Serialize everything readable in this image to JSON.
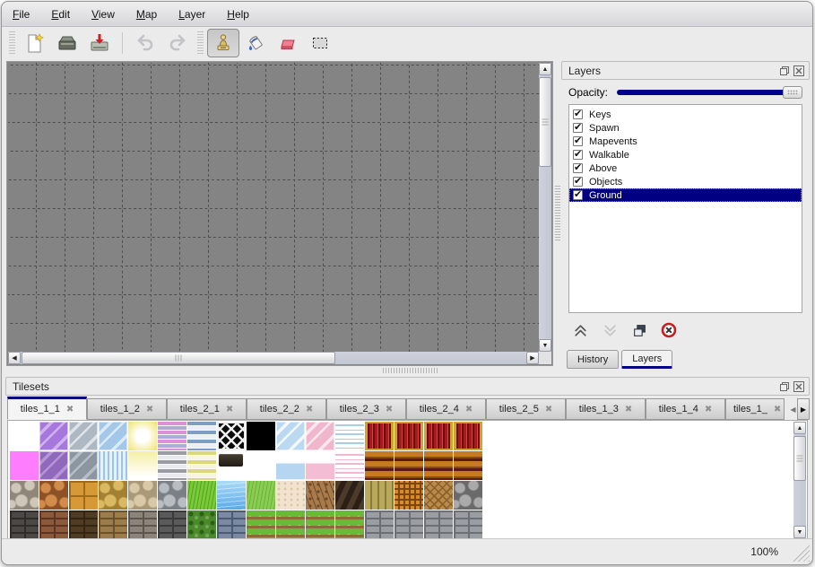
{
  "menu": {
    "items": [
      "File",
      "Edit",
      "View",
      "Map",
      "Layer",
      "Help"
    ]
  },
  "toolbar": {
    "buttons": [
      {
        "icon": "new-file-icon",
        "active": false,
        "disabled": false
      },
      {
        "icon": "open-icon",
        "active": false,
        "disabled": false
      },
      {
        "icon": "save-icon",
        "active": false,
        "disabled": false
      },
      {
        "icon": "undo-icon",
        "active": false,
        "disabled": true
      },
      {
        "icon": "redo-icon",
        "active": false,
        "disabled": true
      },
      {
        "icon": "stamp-tool-icon",
        "active": true,
        "disabled": false
      },
      {
        "icon": "fill-tool-icon",
        "active": false,
        "disabled": false
      },
      {
        "icon": "eraser-tool-icon",
        "active": false,
        "disabled": false
      },
      {
        "icon": "rect-select-tool-icon",
        "active": false,
        "disabled": false
      }
    ]
  },
  "layers_panel": {
    "title": "Layers",
    "opacity_label": "Opacity:",
    "opacity_value": 100,
    "layers": [
      {
        "name": "Keys",
        "checked": true,
        "selected": false
      },
      {
        "name": "Spawn",
        "checked": true,
        "selected": false
      },
      {
        "name": "Mapevents",
        "checked": true,
        "selected": false
      },
      {
        "name": "Walkable",
        "checked": true,
        "selected": false
      },
      {
        "name": "Above",
        "checked": true,
        "selected": false
      },
      {
        "name": "Objects",
        "checked": true,
        "selected": false
      },
      {
        "name": "Ground",
        "checked": true,
        "selected": true
      }
    ],
    "actions": [
      {
        "icon": "move-layer-up-icon",
        "disabled": false
      },
      {
        "icon": "move-layer-down-icon",
        "disabled": true
      },
      {
        "icon": "duplicate-layer-icon",
        "disabled": false
      },
      {
        "icon": "delete-layer-icon",
        "disabled": false
      }
    ],
    "tabs": [
      {
        "label": "History",
        "active": false
      },
      {
        "label": "Layers",
        "active": true
      }
    ]
  },
  "tilesets_panel": {
    "title": "Tilesets",
    "close_glyph": "✖",
    "tabs": [
      {
        "label": "tiles_1_1",
        "active": true,
        "truncated": false
      },
      {
        "label": "tiles_1_2",
        "active": false,
        "truncated": false
      },
      {
        "label": "tiles_2_1",
        "active": false,
        "truncated": false
      },
      {
        "label": "tiles_2_2",
        "active": false,
        "truncated": false
      },
      {
        "label": "tiles_2_3",
        "active": false,
        "truncated": false
      },
      {
        "label": "tiles_2_4",
        "active": false,
        "truncated": false
      },
      {
        "label": "tiles_2_5",
        "active": false,
        "truncated": false
      },
      {
        "label": "tiles_1_3",
        "active": false,
        "truncated": false
      },
      {
        "label": "tiles_1_4",
        "active": false,
        "truncated": false
      },
      {
        "label": "tiles_1_",
        "active": false,
        "truncated": true
      }
    ],
    "palette": {
      "tile_size": 32,
      "rows": [
        [
          {
            "p": "solid",
            "a": "#ffffff"
          },
          {
            "p": "glass",
            "a": "#a678de",
            "b": "#cfb2ee"
          },
          {
            "p": "glass",
            "a": "#aeb8c2",
            "b": "#dde3e9"
          },
          {
            "p": "glass",
            "a": "#a3c6e9",
            "b": "#d9ebf9"
          },
          {
            "p": "glow",
            "a": "#f5ec94"
          },
          {
            "p": "hstripe",
            "a": "#df8ed9",
            "b": "#a9aed8"
          },
          {
            "p": "hstripe",
            "a": "#7e9dc2",
            "b": "#e9eff5"
          },
          {
            "p": "lattice",
            "a": "#0c0c0c",
            "b": "#efefef"
          },
          {
            "p": "solid",
            "a": "#000000"
          },
          {
            "p": "glass",
            "a": "#bcd9f2",
            "b": "#f2f8fd"
          },
          {
            "p": "glass",
            "a": "#f0b6cb",
            "b": "#fbe8ef"
          },
          {
            "p": "lace",
            "a": "#a9cde9",
            "b": "#ffffff"
          },
          {
            "p": "curtain",
            "a": "#a81a20",
            "b": "#d2a22e"
          },
          {
            "p": "curtain",
            "a": "#a81a20",
            "b": "#d2a22e"
          },
          {
            "p": "curtain",
            "a": "#a81a20",
            "b": "#d2a22e"
          },
          {
            "p": "curtain",
            "a": "#a81a20",
            "b": "#d2a22e"
          }
        ],
        [
          {
            "p": "solid",
            "a": "#fe7dfe"
          },
          {
            "p": "glass",
            "a": "#9069bd",
            "b": "#b695d6"
          },
          {
            "p": "glass",
            "a": "#8c96a0",
            "b": "#b4bec6"
          },
          {
            "p": "shimmer",
            "a": "#9cc3e9",
            "b": "#e6f2fb"
          },
          {
            "p": "fade",
            "a": "#f6efa6"
          },
          {
            "p": "hstripe",
            "a": "#9b9ba3",
            "b": "#eaeaee"
          },
          {
            "p": "hstripe",
            "a": "#dcd67c",
            "b": "#f7f5da"
          },
          {
            "p": "sign",
            "a": "#463e32",
            "b": "#201c16"
          },
          null,
          {
            "p": "half",
            "a": "#b6d5f0"
          },
          {
            "p": "half",
            "a": "#f3bdd3"
          },
          {
            "p": "lace",
            "a": "#f0b8d0",
            "b": "#ffffff"
          },
          {
            "p": "plank",
            "a": "#c67a22",
            "b": "#5c1a16"
          },
          {
            "p": "plank",
            "a": "#c67a22",
            "b": "#5c1a16"
          },
          {
            "p": "plank",
            "a": "#c67a22",
            "b": "#5c1a16"
          },
          {
            "p": "plank",
            "a": "#c67a22",
            "b": "#5c1a16"
          }
        ],
        [
          {
            "p": "cobble",
            "a": "#cfc8ba",
            "b": "#8e877a"
          },
          {
            "p": "cobble",
            "a": "#d18c4c",
            "b": "#8c5124"
          },
          {
            "p": "grid",
            "a": "#d79936",
            "b": "#a06a18"
          },
          {
            "p": "cobble",
            "a": "#d9ba62",
            "b": "#a28232"
          },
          {
            "p": "cobble",
            "a": "#d9c9a9",
            "b": "#a99979"
          },
          {
            "p": "cobble",
            "a": "#b9bdc1",
            "b": "#7a8086"
          },
          {
            "p": "grass",
            "a": "#7ac93a",
            "b": "#52a21a"
          },
          {
            "p": "water",
            "a": "#5aaae9",
            "b": "#aadaf9"
          },
          {
            "p": "grass",
            "a": "#8acd52",
            "b": "#6ab23a"
          },
          {
            "p": "sand",
            "a": "#f1e3cd",
            "b": "#d9c5a5"
          },
          {
            "p": "dirt",
            "a": "#a97a4a",
            "b": "#6c4a2a"
          },
          {
            "p": "shingle",
            "a": "#4c3a2a",
            "b": "#2c2016"
          },
          {
            "p": "vplank",
            "a": "#b9a95a",
            "b": "#89793a"
          },
          {
            "p": "weave",
            "a": "#d98a2a",
            "b": "#7c4612"
          },
          {
            "p": "herringbone",
            "a": "#b98a4a",
            "b": "#8c5e2a"
          },
          {
            "p": "cobble",
            "a": "#aaaaaa",
            "b": "#6a6a6a"
          }
        ],
        [
          {
            "p": "brick",
            "a": "#4c4846",
            "b": "#302c2a"
          },
          {
            "p": "brick",
            "a": "#8c5a3a",
            "b": "#5c3622"
          },
          {
            "p": "brick",
            "a": "#503c22",
            "b": "#342611"
          },
          {
            "p": "brick",
            "a": "#9c7c4a",
            "b": "#6c522a"
          },
          {
            "p": "brick",
            "a": "#8c847a",
            "b": "#5c564e"
          },
          {
            "p": "brick",
            "a": "#5a5a5a",
            "b": "#3a3a3a"
          },
          {
            "p": "hedge",
            "a": "#4a8a2a",
            "b": "#2c5e16"
          },
          {
            "p": "brick",
            "a": "#7a8aa2",
            "b": "#4c5a72"
          },
          {
            "p": "flowers",
            "a": "#6aba3a",
            "b": "#8c6a3a"
          },
          {
            "p": "flowers",
            "a": "#6aba3a",
            "b": "#8c6a3a"
          },
          {
            "p": "flowers",
            "a": "#6aba3a",
            "b": "#8c6a3a"
          },
          {
            "p": "flowers",
            "a": "#6aba3a",
            "b": "#8c6a3a"
          },
          {
            "p": "brick",
            "a": "#9a9ea2",
            "b": "#6c7076"
          },
          {
            "p": "brick",
            "a": "#9a9ea2",
            "b": "#6c7076"
          },
          {
            "p": "brick",
            "a": "#9a9ea2",
            "b": "#6c7076"
          },
          {
            "p": "brick",
            "a": "#9a9ea2",
            "b": "#6c7076"
          }
        ]
      ]
    }
  },
  "status_bar": {
    "zoom": "100%"
  },
  "colors": {
    "accent": "#000080",
    "canvas_gray": "#848484",
    "grid_line": "#4b4b4b",
    "selection_text": "#ffffff"
  }
}
